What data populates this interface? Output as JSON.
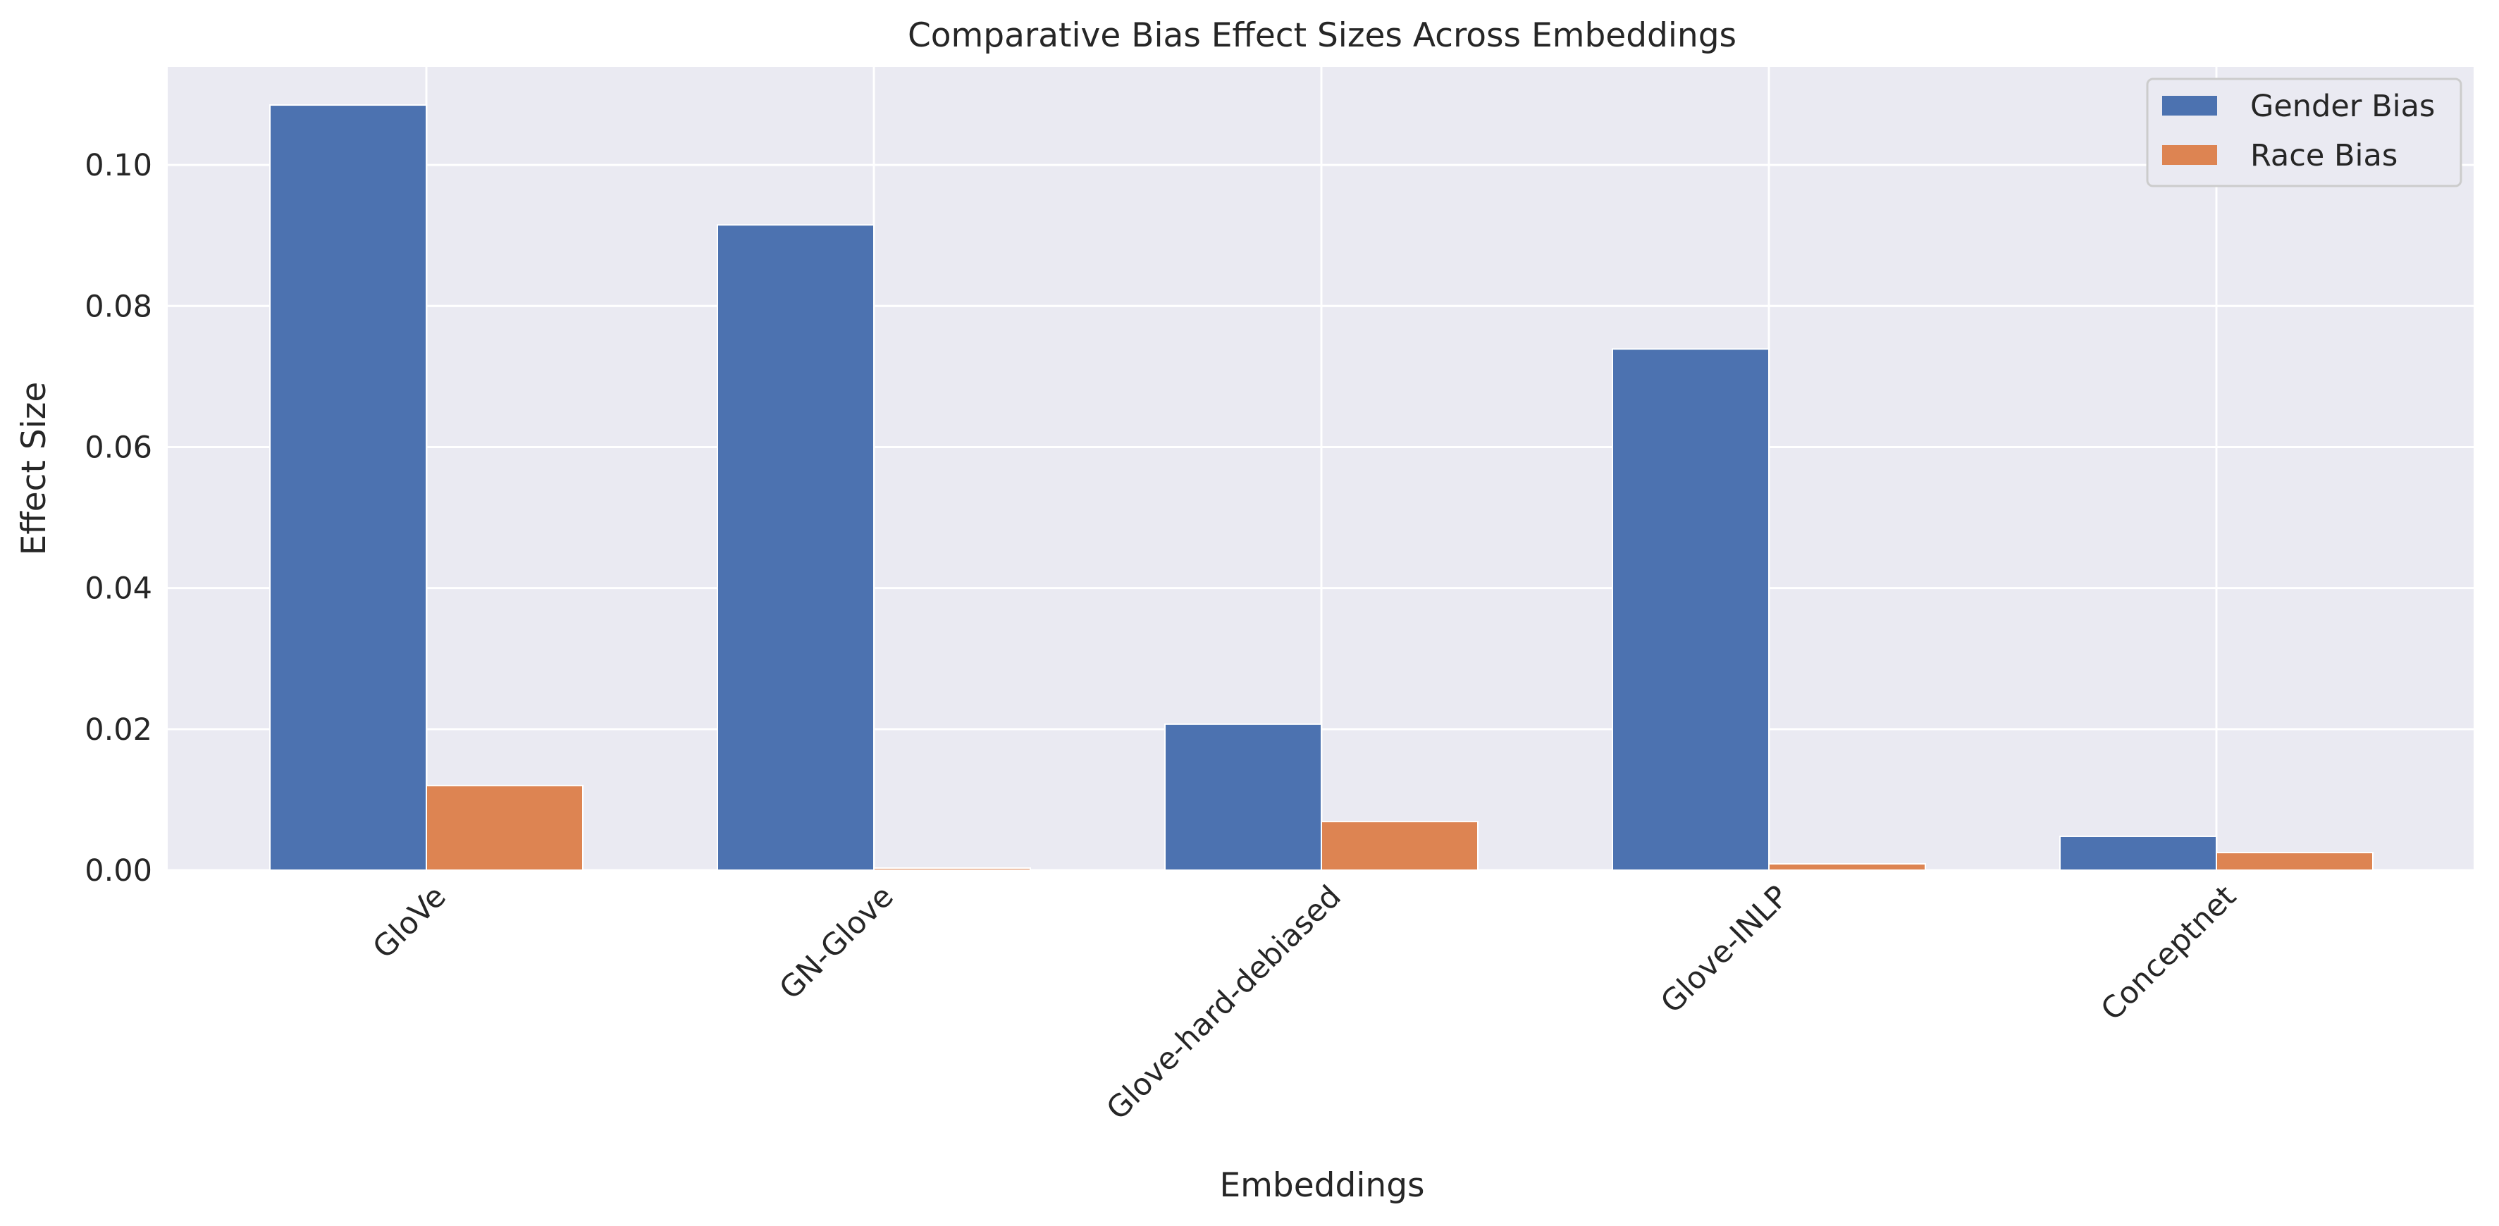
{
  "chart_data": {
    "type": "bar",
    "title": "Comparative Bias Effect Sizes Across Embeddings",
    "xlabel": "Embeddings",
    "ylabel": "Effect Size",
    "categories": [
      "GloVe",
      "GN-Glove",
      "Glove-hard-debiased",
      "Glove-INLP",
      "Conceptnet"
    ],
    "series": [
      {
        "name": "Gender Bias",
        "color": "#4c72b0",
        "values": [
          0.1085,
          0.0915,
          0.0207,
          0.0739,
          0.0048
        ]
      },
      {
        "name": "Race Bias",
        "color": "#dd8452",
        "values": [
          0.012,
          0.0003,
          0.0069,
          0.0009,
          0.0025
        ]
      }
    ],
    "ylim": [
      0,
      0.1139
    ],
    "yticks": [
      "0.00",
      "0.02",
      "0.04",
      "0.06",
      "0.08",
      "0.10"
    ],
    "grid": true,
    "legend_position": "top-right",
    "background": "#eaeaf2"
  }
}
